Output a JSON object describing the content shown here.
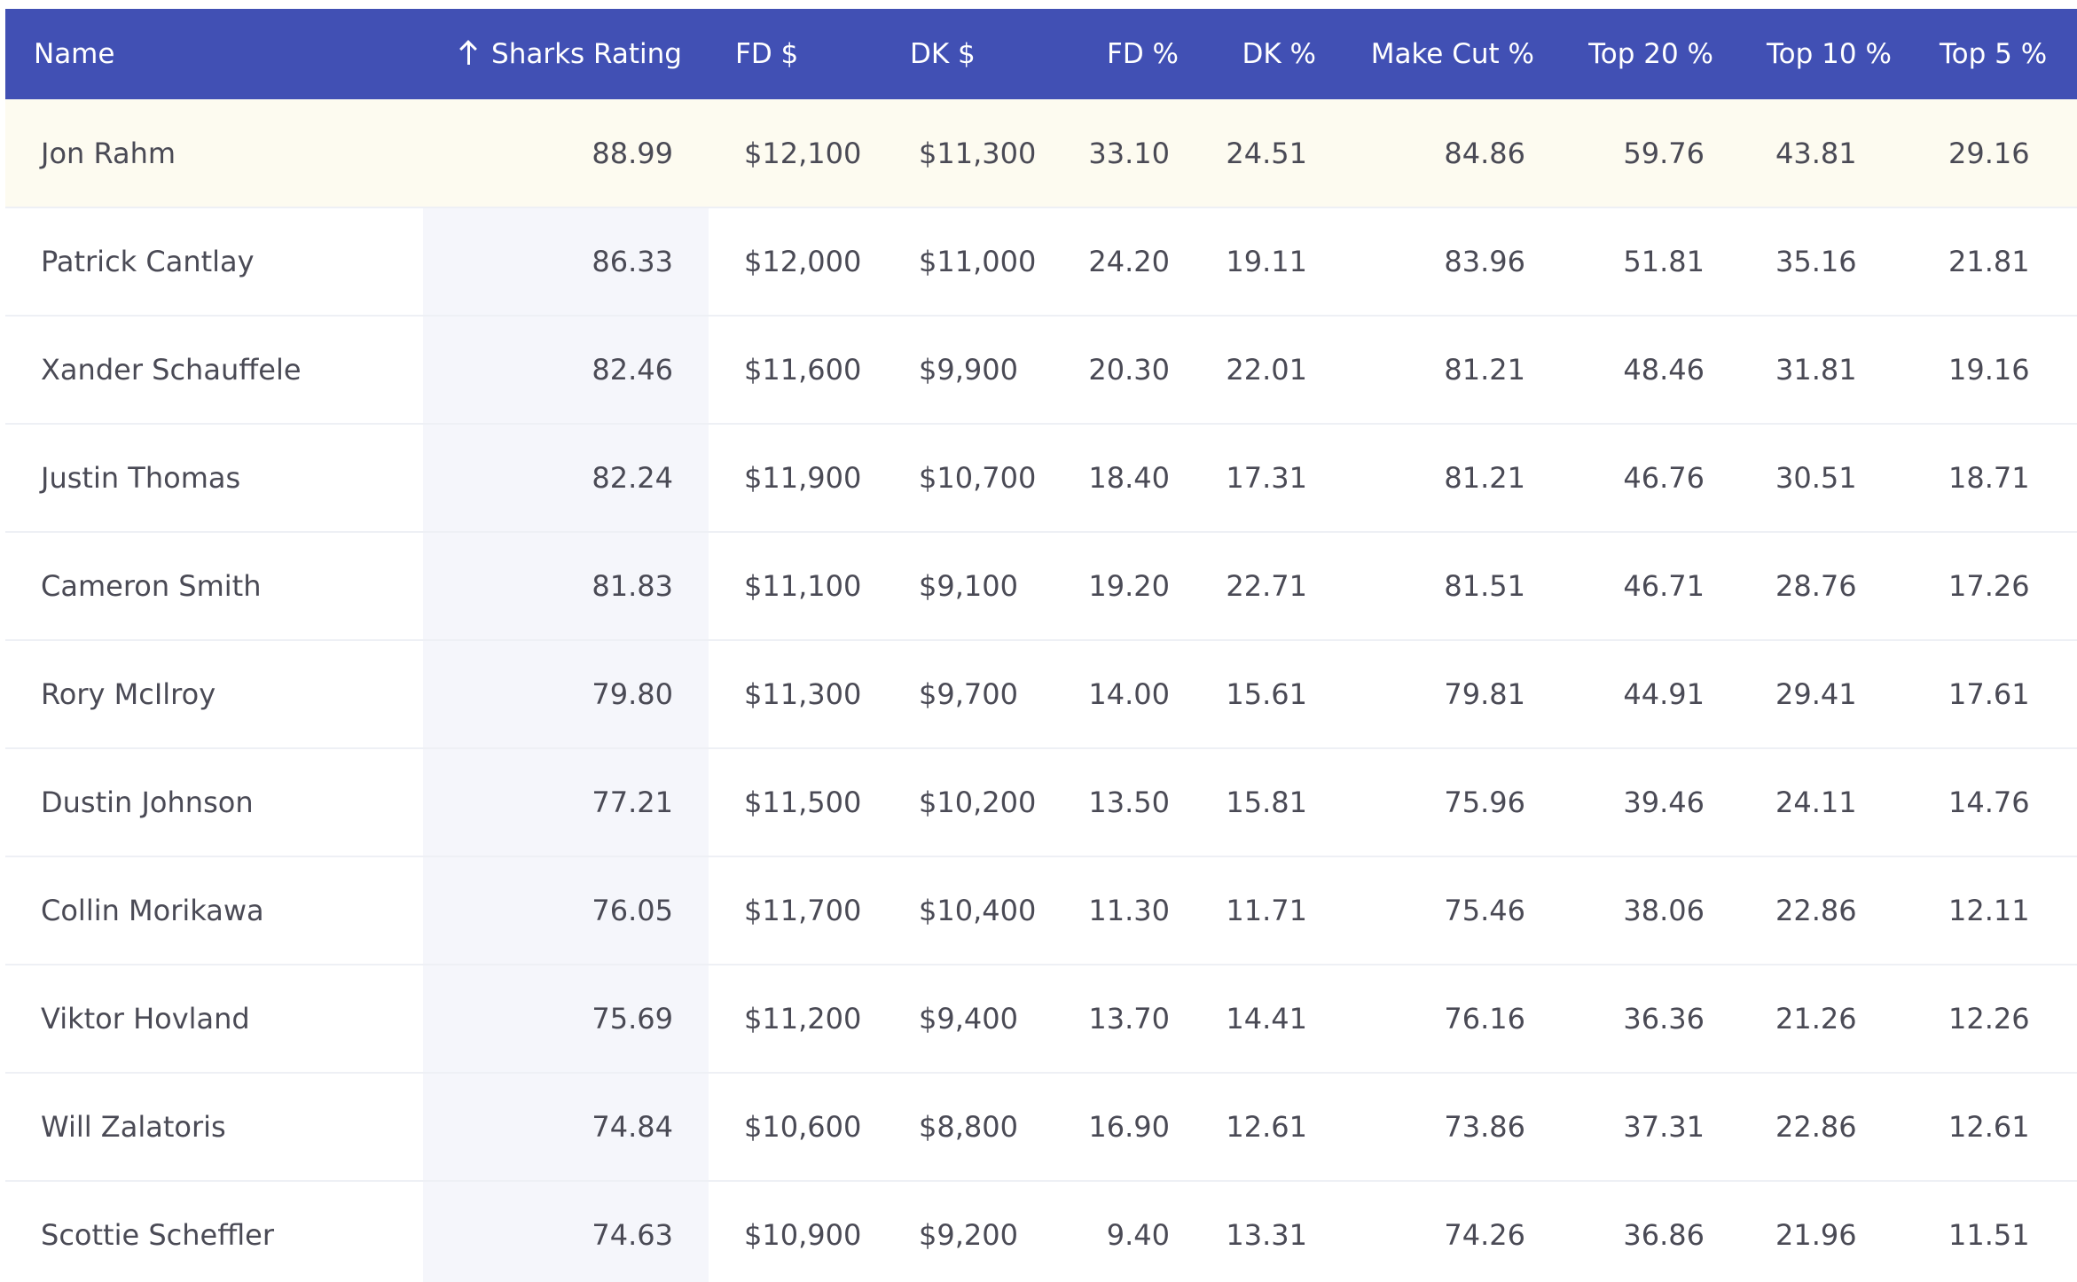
{
  "columns": {
    "name": "Name",
    "sharks_rating": "Sharks Rating",
    "fd_salary": "FD $",
    "dk_salary": "DK $",
    "fd_pct": "FD %",
    "dk_pct": "DK %",
    "make_cut": "Make Cut %",
    "top20": "Top 20 %",
    "top10": "Top 10 %",
    "top5": "Top 5 %"
  },
  "sort": {
    "column": "sharks_rating",
    "direction": "ascending-arrow-icon"
  },
  "colors": {
    "header_bg": "#4150b4",
    "header_text": "#ffffff",
    "highlight_row": "#fdfbf0",
    "sorted_column_bg": "#f5f6fb",
    "text": "#4a4a55"
  },
  "rows": [
    {
      "name": "Jon Rahm",
      "sharks": "88.99",
      "fd": "$12,100",
      "dk": "$11,300",
      "fdp": "33.10",
      "dkp": "24.51",
      "cut": "84.86",
      "t20": "59.76",
      "t10": "43.81",
      "t5": "29.16"
    },
    {
      "name": "Patrick Cantlay",
      "sharks": "86.33",
      "fd": "$12,000",
      "dk": "$11,000",
      "fdp": "24.20",
      "dkp": "19.11",
      "cut": "83.96",
      "t20": "51.81",
      "t10": "35.16",
      "t5": "21.81"
    },
    {
      "name": "Xander Schauffele",
      "sharks": "82.46",
      "fd": "$11,600",
      "dk": "$9,900",
      "fdp": "20.30",
      "dkp": "22.01",
      "cut": "81.21",
      "t20": "48.46",
      "t10": "31.81",
      "t5": "19.16"
    },
    {
      "name": "Justin Thomas",
      "sharks": "82.24",
      "fd": "$11,900",
      "dk": "$10,700",
      "fdp": "18.40",
      "dkp": "17.31",
      "cut": "81.21",
      "t20": "46.76",
      "t10": "30.51",
      "t5": "18.71"
    },
    {
      "name": "Cameron Smith",
      "sharks": "81.83",
      "fd": "$11,100",
      "dk": "$9,100",
      "fdp": "19.20",
      "dkp": "22.71",
      "cut": "81.51",
      "t20": "46.71",
      "t10": "28.76",
      "t5": "17.26"
    },
    {
      "name": "Rory McIlroy",
      "sharks": "79.80",
      "fd": "$11,300",
      "dk": "$9,700",
      "fdp": "14.00",
      "dkp": "15.61",
      "cut": "79.81",
      "t20": "44.91",
      "t10": "29.41",
      "t5": "17.61"
    },
    {
      "name": "Dustin Johnson",
      "sharks": "77.21",
      "fd": "$11,500",
      "dk": "$10,200",
      "fdp": "13.50",
      "dkp": "15.81",
      "cut": "75.96",
      "t20": "39.46",
      "t10": "24.11",
      "t5": "14.76"
    },
    {
      "name": "Collin Morikawa",
      "sharks": "76.05",
      "fd": "$11,700",
      "dk": "$10,400",
      "fdp": "11.30",
      "dkp": "11.71",
      "cut": "75.46",
      "t20": "38.06",
      "t10": "22.86",
      "t5": "12.11"
    },
    {
      "name": "Viktor Hovland",
      "sharks": "75.69",
      "fd": "$11,200",
      "dk": "$9,400",
      "fdp": "13.70",
      "dkp": "14.41",
      "cut": "76.16",
      "t20": "36.36",
      "t10": "21.26",
      "t5": "12.26"
    },
    {
      "name": "Will Zalatoris",
      "sharks": "74.84",
      "fd": "$10,600",
      "dk": "$8,800",
      "fdp": "16.90",
      "dkp": "12.61",
      "cut": "73.86",
      "t20": "37.31",
      "t10": "22.86",
      "t5": "12.61"
    },
    {
      "name": "Scottie Scheffler",
      "sharks": "74.63",
      "fd": "$10,900",
      "dk": "$9,200",
      "fdp": "9.40",
      "dkp": "13.31",
      "cut": "74.26",
      "t20": "36.86",
      "t10": "21.96",
      "t5": "11.51"
    }
  ]
}
